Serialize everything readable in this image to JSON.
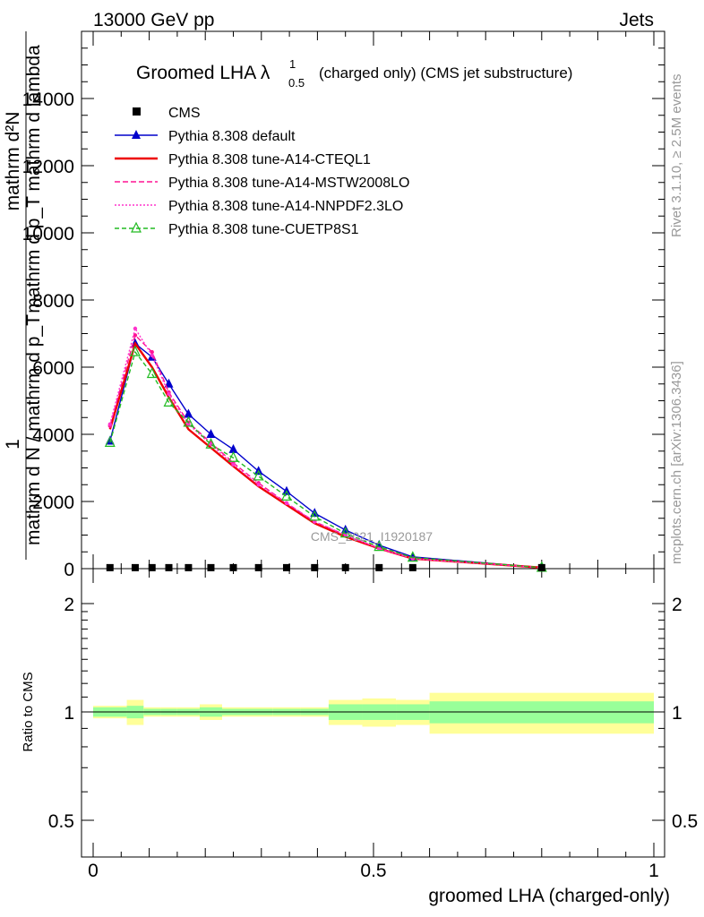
{
  "header": {
    "left": "13000 GeV pp",
    "right": "Jets"
  },
  "side_text": {
    "rivet": "Rivet 3.1.10, ≥ 2.5M events",
    "mcplots": "mcplots.cern.ch [arXiv:1306.3436]"
  },
  "watermark": "CMS_2021_I1920187",
  "chart_data": {
    "type": "line",
    "title_main": "Groomed LHA λ",
    "title_sup": "1",
    "title_sub": "0.5",
    "title_rest": "(charged only) (CMS jet substructure)",
    "upper": {
      "ylabel_num": "mathrm d²N",
      "ylabel_den": "mathrm d p_T mathrm d lambda",
      "ylabel_num2": "1",
      "ylabel_den2": "mathrm d N / mathrm d p_T",
      "ylim": [
        0,
        16000
      ],
      "yticks": [
        0,
        2000,
        4000,
        6000,
        8000,
        10000,
        12000,
        14000
      ],
      "ytick_labels": [
        "0",
        "2000",
        "4000",
        "6000",
        "8000",
        "10000",
        "12000",
        "14000"
      ]
    },
    "ratio": {
      "ylabel": "Ratio to CMS",
      "ylim": [
        0.4,
        2.4
      ],
      "log": true,
      "yticks": [
        0.5,
        1,
        2
      ],
      "ytick_labels": [
        "0.5",
        "1",
        "2"
      ]
    },
    "xlabel": "groomed LHA (charged-only)",
    "xlim": [
      -0.02,
      1.02
    ],
    "xticks": [
      0,
      0.5,
      1
    ],
    "xtick_labels": [
      "0",
      "0.5",
      "1"
    ],
    "legend_position": "top-left",
    "cms": {
      "name": "CMS",
      "x": [
        0.03,
        0.075,
        0.105,
        0.135,
        0.17,
        0.21,
        0.25,
        0.295,
        0.345,
        0.395,
        0.45,
        0.51,
        0.57,
        0.8
      ],
      "y": [
        30,
        30,
        30,
        30,
        30,
        30,
        30,
        30,
        30,
        30,
        30,
        30,
        30,
        30
      ],
      "bins": [
        [
          0.0,
          0.06
        ],
        [
          0.06,
          0.09
        ],
        [
          0.09,
          0.12
        ],
        [
          0.12,
          0.15
        ],
        [
          0.15,
          0.19
        ],
        [
          0.19,
          0.23
        ],
        [
          0.23,
          0.27
        ],
        [
          0.27,
          0.32
        ],
        [
          0.32,
          0.37
        ],
        [
          0.37,
          0.42
        ],
        [
          0.42,
          0.48
        ],
        [
          0.48,
          0.54
        ],
        [
          0.54,
          0.6
        ],
        [
          0.6,
          1.0
        ]
      ],
      "ratio_stat": [
        0.03,
        0.04,
        0.02,
        0.02,
        0.02,
        0.03,
        0.02,
        0.02,
        0.02,
        0.02,
        0.05,
        0.05,
        0.05,
        0.07
      ],
      "ratio_total": [
        0.04,
        0.08,
        0.03,
        0.03,
        0.03,
        0.05,
        0.03,
        0.03,
        0.03,
        0.03,
        0.08,
        0.09,
        0.08,
        0.13
      ]
    },
    "series": [
      {
        "name": "Pythia 8.308 default",
        "color": "#0000cc",
        "dash": "",
        "marker": "triangle-filled",
        "y": [
          3800,
          6700,
          6300,
          5500,
          4600,
          4000,
          3550,
          2900,
          2300,
          1650,
          1150,
          700,
          350,
          30
        ]
      },
      {
        "name": "Pythia 8.308 tune-A14-CTEQL1",
        "color": "#ee0000",
        "dash": "",
        "marker": "none",
        "width": 2.4,
        "y": [
          4150,
          6700,
          6000,
          5100,
          4150,
          3600,
          3050,
          2450,
          1900,
          1350,
          950,
          600,
          300,
          30
        ]
      },
      {
        "name": "Pythia 8.308 tune-A14-MSTW2008LO",
        "color": "#ff1493",
        "dash": "6,3",
        "marker": "dot",
        "y": [
          4250,
          6950,
          6450,
          5250,
          4350,
          3750,
          3150,
          2550,
          1950,
          1400,
          1000,
          600,
          300,
          30
        ]
      },
      {
        "name": "Pythia 8.308 tune-A14-NNPDF2.3LO",
        "color": "#ff33cc",
        "dash": "2,2",
        "marker": "dot",
        "y": [
          4300,
          7150,
          6350,
          5200,
          4300,
          3700,
          3100,
          2500,
          1950,
          1400,
          1000,
          600,
          300,
          30
        ]
      },
      {
        "name": "Pythia 8.308 tune-CUETP8S1",
        "color": "#22bb22",
        "dash": "5,3",
        "marker": "triangle-open",
        "y": [
          3750,
          6450,
          5800,
          4950,
          4350,
          3700,
          3300,
          2750,
          2150,
          1550,
          1050,
          650,
          330,
          30
        ]
      }
    ],
    "colors": {
      "stat_band": "#99ff99",
      "total_band": "#ffff99"
    }
  }
}
